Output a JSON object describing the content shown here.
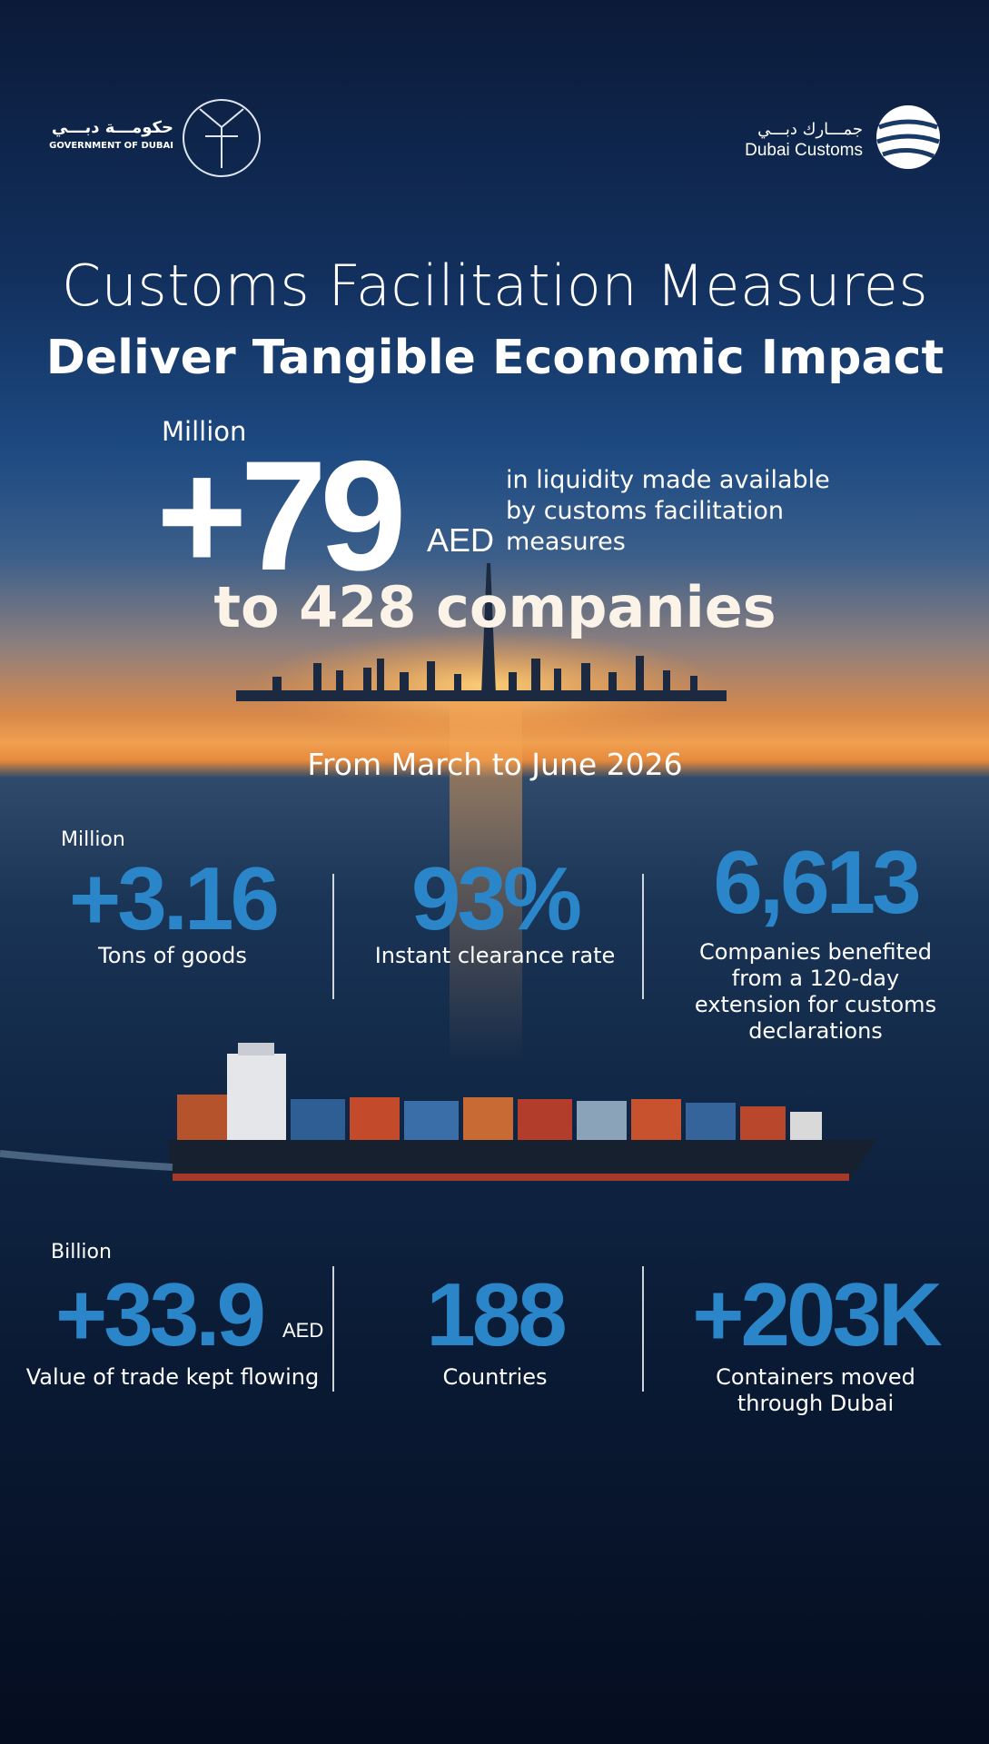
{
  "logos": {
    "government": {
      "arabic": "حكومـــة دبـــي",
      "english": "GOVERNMENT OF DUBAI"
    },
    "customs": {
      "arabic": "جمـــارك دبـــي",
      "english": "Dubai Customs"
    }
  },
  "title": {
    "line1": "Customs Facilitation Measures",
    "line2": "Deliver Tangible Economic Impact"
  },
  "hero": {
    "unit": "Million",
    "value": "+79",
    "currency": "AED",
    "description": "in liquidity made available by customs facilitation measures",
    "companies": "to 428 companies"
  },
  "period": "From March to June 2026",
  "stats_row1": [
    {
      "unit": "Million",
      "value": "+3.16",
      "label": "Tons of goods"
    },
    {
      "value": "93%",
      "label": "Instant clearance rate"
    },
    {
      "value": "6,613",
      "label": "Companies benefited from a 120-day extension for customs declarations"
    }
  ],
  "stats_row2": [
    {
      "unit": "Billion",
      "value": "+33.9",
      "currency": "AED",
      "label": "Value of trade kept flowing"
    },
    {
      "value": "188",
      "label": "Countries"
    },
    {
      "value": "+203K",
      "label": "Containers moved through Dubai"
    }
  ]
}
